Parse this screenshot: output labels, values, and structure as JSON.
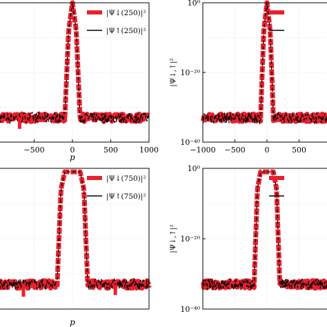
{
  "colors": {
    "series_down": "#e8212f",
    "series_up": "#000000"
  },
  "chart_data": [
    {
      "type": "line",
      "title": "",
      "xlabel": "p",
      "ylabel": "",
      "x_ticks": [
        "−500",
        "0",
        "500",
        "1000"
      ],
      "x_tick_values": [
        -500,
        0,
        500,
        1000
      ],
      "y_ticks": [],
      "ylim_log10": [
        -40,
        0
      ],
      "y_scale": "log",
      "legend_position": "top-right",
      "series": [
        {
          "name": "|Ψ↓(250)|²",
          "x": [
            -1000,
            -500,
            -100,
            -50,
            0,
            50,
            100,
            500,
            1000
          ],
          "log10_y": [
            -33,
            -33,
            -33,
            -8,
            0,
            -8,
            -33,
            -33,
            -33
          ]
        },
        {
          "name": "|Ψ↑(250)|²",
          "x": [
            -1000,
            -500,
            -100,
            -50,
            0,
            50,
            100,
            500,
            1000
          ],
          "log10_y": [
            -33,
            -33,
            -33,
            -8,
            0,
            -8,
            -33,
            -33,
            -33
          ]
        }
      ]
    },
    {
      "type": "line",
      "title": "",
      "xlabel": "",
      "ylabel": "|Ψ↓,↑|²",
      "x_ticks": [
        "−1000",
        "−500",
        "0",
        "500"
      ],
      "x_tick_values": [
        -1000,
        -500,
        0,
        500
      ],
      "y_ticks": [
        "10⁰",
        "10⁻²⁰",
        "10⁻⁴⁰"
      ],
      "y_tick_exponents": [
        0,
        -20,
        -40
      ],
      "ylim_log10": [
        -40,
        0
      ],
      "y_scale": "log",
      "legend_position": "top-right",
      "series": [
        {
          "name": "",
          "x": [
            -1000,
            -500,
            -100,
            -50,
            0,
            50,
            100,
            500,
            1000
          ],
          "log10_y": [
            -33,
            -33,
            -33,
            -8,
            0,
            -8,
            -33,
            -33,
            -33
          ]
        },
        {
          "name": "",
          "x": [
            -1000,
            -500,
            -100,
            -50,
            0,
            50,
            100,
            500,
            1000
          ],
          "log10_y": [
            -33,
            -33,
            -33,
            -8,
            0,
            -8,
            -33,
            -33,
            -33
          ]
        }
      ]
    },
    {
      "type": "line",
      "title": "",
      "xlabel": "p",
      "ylabel": "",
      "x_ticks": [],
      "x_tick_values": [],
      "y_ticks": [],
      "ylim_log10": [
        -40,
        0
      ],
      "y_scale": "log",
      "legend_position": "top-right",
      "series": [
        {
          "name": "|Ψ↓(750)|²",
          "x": [
            -1000,
            -500,
            -200,
            -150,
            -100,
            0,
            100,
            150,
            200,
            500,
            1000
          ],
          "log10_y": [
            -33,
            -33,
            -33,
            -6,
            -1,
            -1,
            -1,
            -6,
            -33,
            -33,
            -33
          ]
        },
        {
          "name": "|Ψ↑(750)|²",
          "x": [
            -1000,
            -500,
            -200,
            -150,
            -100,
            0,
            100,
            150,
            200,
            500,
            1000
          ],
          "log10_y": [
            -33,
            -33,
            -33,
            -6,
            -1,
            -1,
            -1,
            -6,
            -33,
            -33,
            -33
          ]
        }
      ]
    },
    {
      "type": "line",
      "title": "",
      "xlabel": "",
      "ylabel": "|Ψ↓,↑|²",
      "x_ticks": [],
      "x_tick_values": [],
      "y_ticks": [
        "10⁰",
        "10⁻²⁰",
        "10⁻⁴⁰"
      ],
      "y_tick_exponents": [
        0,
        -20,
        -40
      ],
      "ylim_log10": [
        -40,
        0
      ],
      "y_scale": "log",
      "legend_position": "top-right",
      "series": [
        {
          "name": "",
          "x": [
            -1000,
            -500,
            -200,
            -150,
            -100,
            0,
            100,
            150,
            200,
            500,
            1000
          ],
          "log10_y": [
            -33,
            -33,
            -33,
            -6,
            -1,
            -1,
            -1,
            -6,
            -33,
            -33,
            -33
          ]
        },
        {
          "name": "",
          "x": [
            -1000,
            -500,
            -200,
            -150,
            -100,
            0,
            100,
            150,
            200,
            500,
            1000
          ],
          "log10_y": [
            -33,
            -33,
            -33,
            -6,
            -1,
            -1,
            -1,
            -6,
            -33,
            -33,
            -33
          ]
        }
      ]
    }
  ]
}
